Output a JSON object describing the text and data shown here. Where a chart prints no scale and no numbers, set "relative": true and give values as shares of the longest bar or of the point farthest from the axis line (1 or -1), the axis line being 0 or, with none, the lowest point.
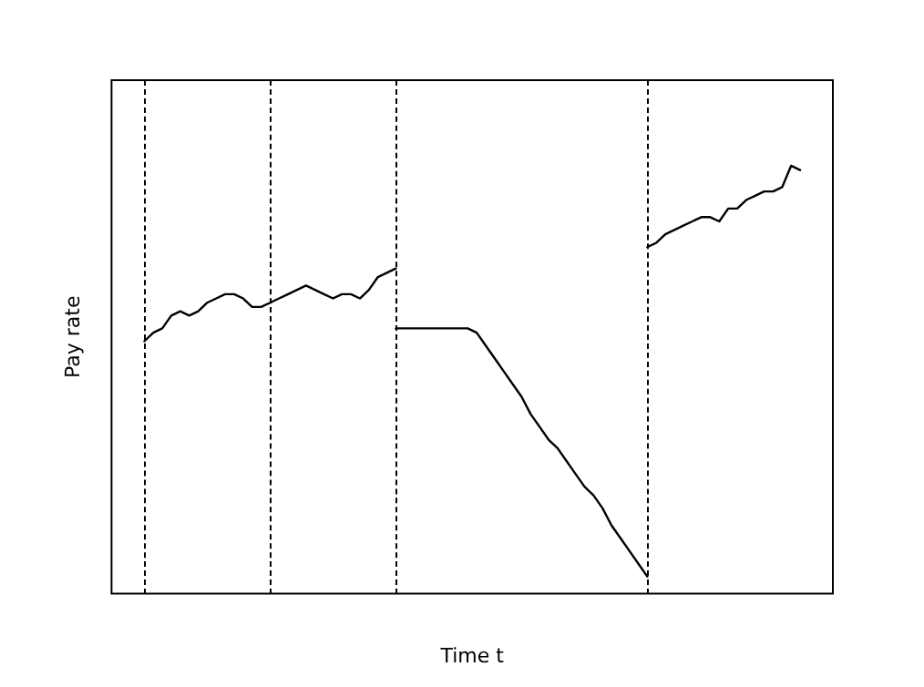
{
  "chart_data": {
    "type": "line",
    "relative": true,
    "xlabel": "Time t",
    "ylabel": "Pay rate",
    "categories": [
      null,
      null,
      null,
      null,
      null,
      null,
      null,
      null,
      null,
      null,
      null,
      null,
      null,
      null,
      null,
      null,
      null,
      null,
      null,
      null,
      null,
      null,
      null,
      null,
      null,
      null,
      null,
      null,
      null,
      null,
      null,
      null,
      null,
      null,
      null,
      null,
      null,
      null,
      null,
      null,
      null,
      null,
      null,
      null,
      null,
      null,
      null,
      null,
      null,
      null,
      null,
      null,
      null,
      null,
      null,
      null,
      null,
      null,
      null,
      null,
      null,
      null,
      null,
      null,
      null,
      null,
      null,
      null,
      null,
      null,
      null,
      null,
      null,
      null
    ],
    "series": [
      {
        "color": "#000000",
        "values": [
          0.59,
          0.61,
          0.62,
          0.65,
          0.66,
          0.65,
          0.66,
          0.68,
          0.69,
          0.7,
          0.7,
          0.69,
          0.67,
          0.67,
          0.68,
          0.69,
          0.7,
          0.71,
          0.72,
          0.71,
          0.7,
          0.69,
          0.7,
          0.7,
          0.69,
          0.71,
          0.74,
          0.75,
          0.76,
          null,
          null,
          null,
          null,
          null,
          null,
          null,
          null,
          null,
          null,
          null,
          null,
          null,
          null,
          null,
          null,
          null,
          null,
          null,
          null,
          null,
          null,
          null,
          null,
          null,
          null,
          null,
          null,
          null,
          null,
          null,
          null,
          null,
          null,
          null,
          null,
          null,
          null,
          null,
          null,
          null,
          null,
          null,
          null,
          null
        ]
      },
      {
        "color": "#000000",
        "values": [
          null,
          null,
          null,
          null,
          null,
          null,
          null,
          null,
          null,
          null,
          null,
          null,
          null,
          null,
          null,
          null,
          null,
          null,
          null,
          null,
          null,
          null,
          null,
          null,
          null,
          null,
          null,
          null,
          0.62,
          0.62,
          0.62,
          0.62,
          0.62,
          0.62,
          0.62,
          0.62,
          0.62,
          0.61,
          0.58,
          0.55,
          0.52,
          0.49,
          0.46,
          0.42,
          0.39,
          0.36,
          0.34,
          0.31,
          0.28,
          0.25,
          0.23,
          0.2,
          0.16,
          0.13,
          0.1,
          0.07,
          0.04,
          null,
          null,
          null,
          null,
          null,
          null,
          null,
          null,
          null,
          null,
          null,
          null,
          null,
          null,
          null,
          null,
          null
        ]
      },
      {
        "color": "#000000",
        "values": [
          null,
          null,
          null,
          null,
          null,
          null,
          null,
          null,
          null,
          null,
          null,
          null,
          null,
          null,
          null,
          null,
          null,
          null,
          null,
          null,
          null,
          null,
          null,
          null,
          null,
          null,
          null,
          null,
          null,
          null,
          null,
          null,
          null,
          null,
          null,
          null,
          null,
          null,
          null,
          null,
          null,
          null,
          null,
          null,
          null,
          null,
          null,
          null,
          null,
          null,
          null,
          null,
          null,
          null,
          null,
          null,
          0.81,
          0.82,
          0.84,
          0.85,
          0.86,
          0.87,
          0.88,
          0.88,
          0.87,
          0.9,
          0.9,
          0.92,
          0.93,
          0.94,
          0.94,
          0.95,
          1,
          0.99
        ]
      }
    ],
    "marker": "none",
    "line_style": "solid",
    "grid": "x",
    "legend": false
  }
}
